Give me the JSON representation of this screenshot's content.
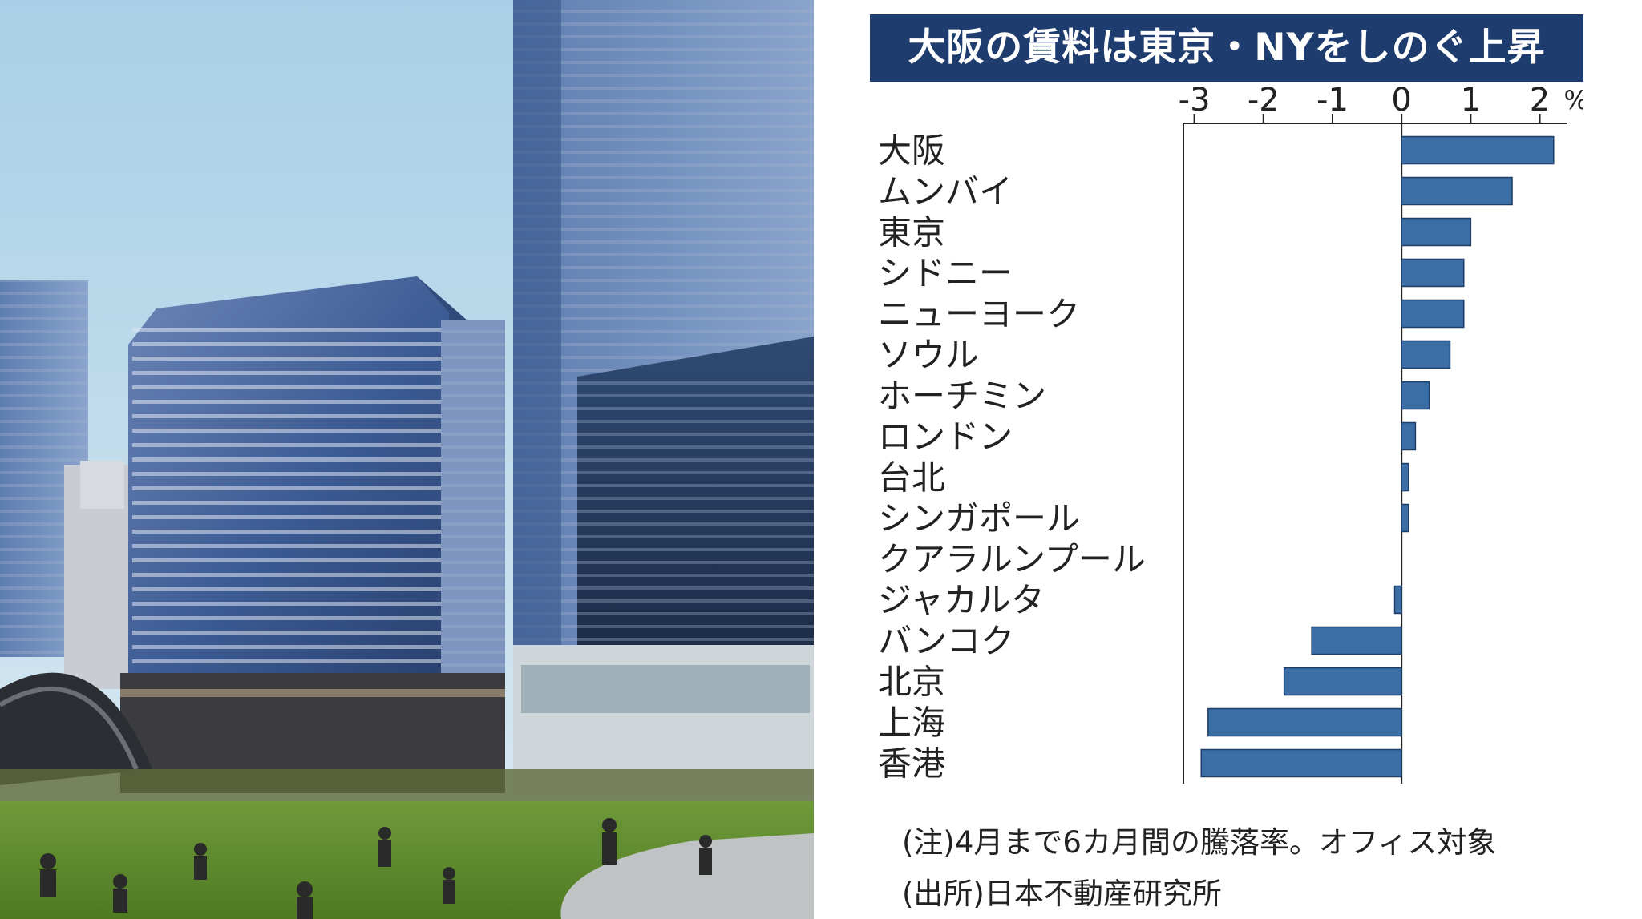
{
  "photo": {
    "description_icon": "office-towers-park-photo"
  },
  "chart_data": {
    "type": "bar",
    "orientation": "horizontal",
    "title": "大阪の賃料は東京・NYをしのぐ上昇",
    "unit": "%",
    "xlim": [
      -3.1,
      2.4
    ],
    "xticks": [
      "-3",
      "-2",
      "-1",
      "0",
      "1",
      "2"
    ],
    "categories": [
      "大阪",
      "ムンバイ",
      "東京",
      "シドニー",
      "ニューヨーク",
      "ソウル",
      "ホーチミン",
      "ロンドン",
      "台北",
      "シンガポール",
      "クアラルンプール",
      "ジャカルタ",
      "バンコク",
      "北京",
      "上海",
      "香港"
    ],
    "values": [
      2.2,
      1.6,
      1.0,
      0.9,
      0.9,
      0.7,
      0.4,
      0.2,
      0.1,
      0.1,
      0.0,
      -0.1,
      -1.3,
      -1.7,
      -2.8,
      -2.9
    ],
    "bar_color": "#3a6ea5",
    "grid": false
  },
  "notes": {
    "note": "(注)4月まで6カ月間の騰落率。オフィス対象",
    "source": "(出所)日本不動産研究所"
  },
  "colors": {
    "title_bg": "#1f3c6e",
    "bar": "#3a6ea5"
  }
}
